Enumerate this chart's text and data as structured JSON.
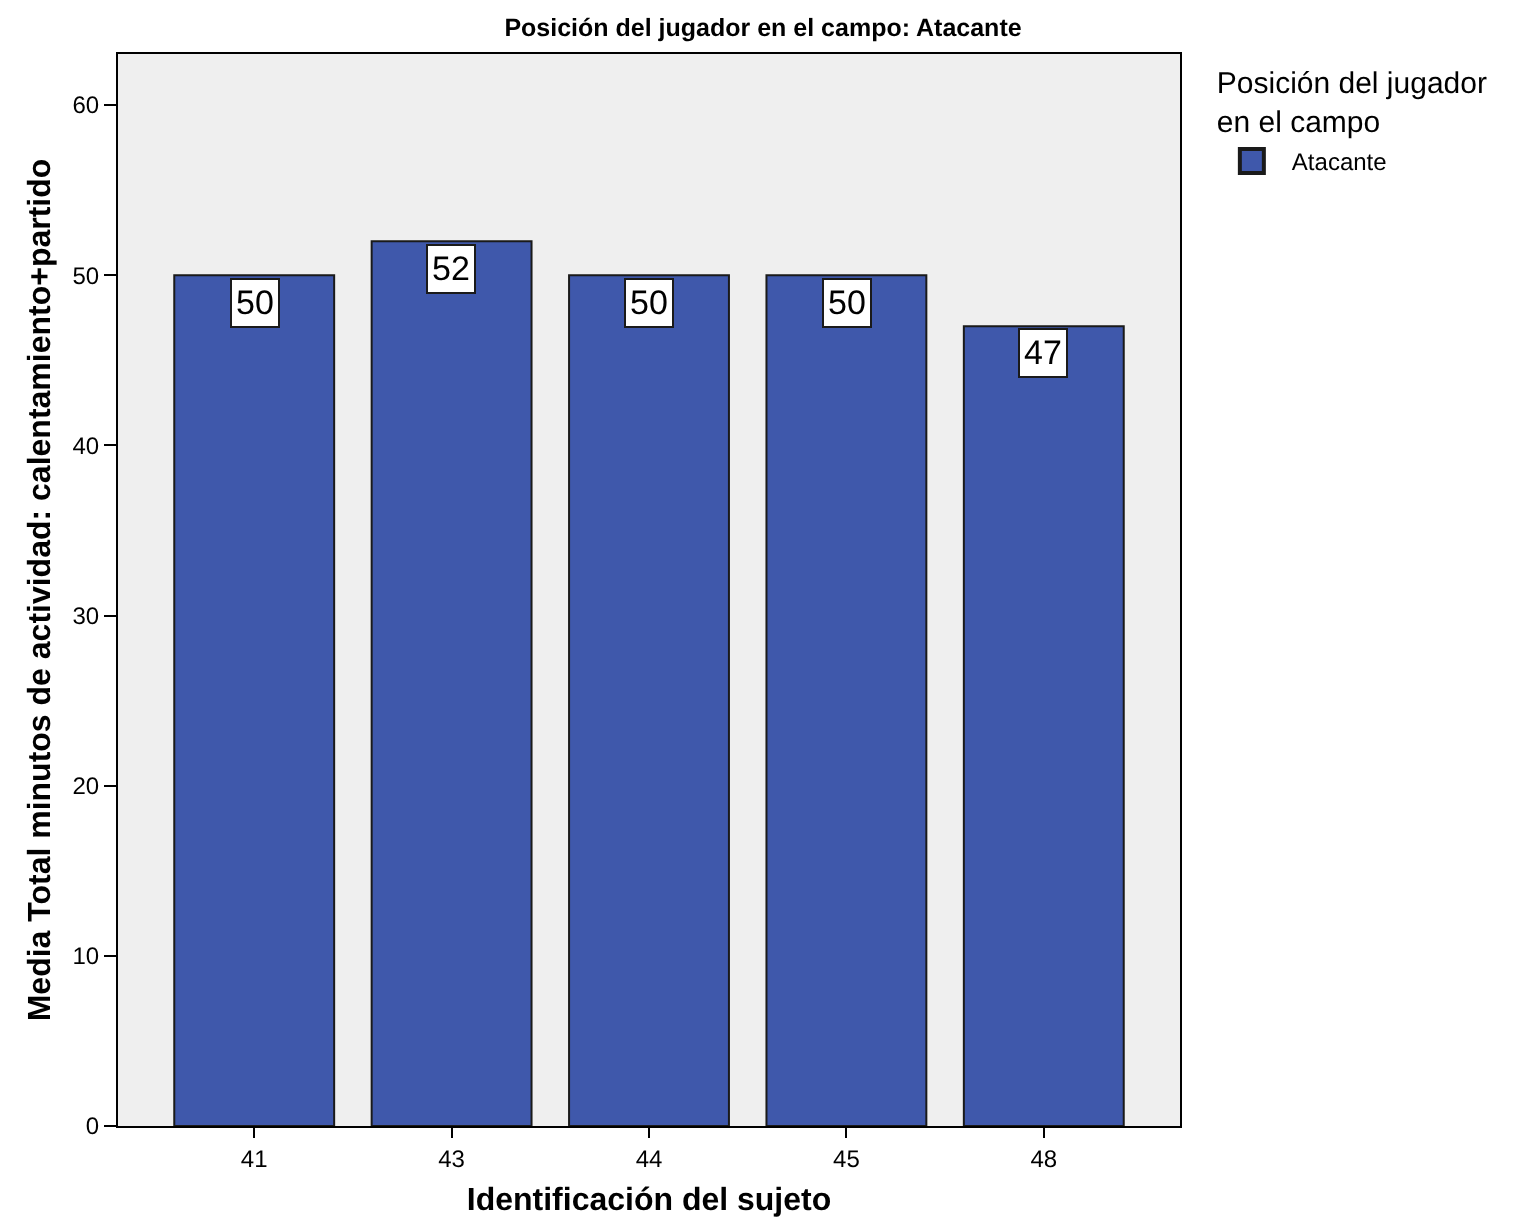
{
  "chart_data": {
    "type": "bar",
    "title": "Posición del jugador en el campo: Atacante",
    "xlabel": "Identificación del sujeto",
    "ylabel": "Media Total minutos de actividad: calentamiento+partido",
    "legend_title": "Posición del jugador en el campo",
    "categories": [
      "41",
      "43",
      "44",
      "45",
      "48"
    ],
    "series": [
      {
        "name": "Atacante",
        "color": "#3f58ab",
        "values": [
          50,
          52,
          50,
          50,
          47
        ]
      }
    ],
    "ylim": [
      0,
      63
    ],
    "yticks": [
      0,
      10,
      20,
      30,
      40,
      50,
      60
    ],
    "data_labels": true,
    "grid": false,
    "legend": "top right"
  }
}
